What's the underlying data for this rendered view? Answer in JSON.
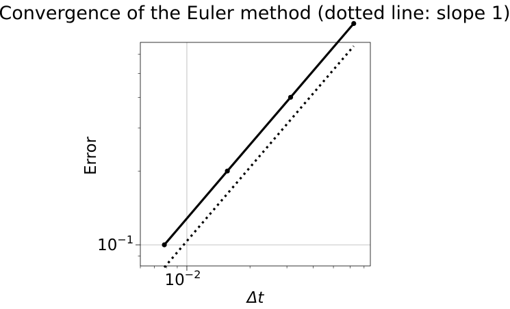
{
  "chart_data": {
    "type": "line",
    "title": "Convergence of the Euler method (dotted line: slope 1)",
    "xlabel": "Δt",
    "ylabel": "Error",
    "x_scale": "log",
    "y_scale": "log",
    "xlim": [
      0.006,
      0.075
    ],
    "ylim": [
      0.082,
      0.67
    ],
    "grid": true,
    "x_ticks": [
      {
        "value": 0.01,
        "base": "10",
        "exp": "−2"
      }
    ],
    "y_ticks": [
      {
        "value": 0.1,
        "base": "10",
        "exp": "−1"
      }
    ],
    "series": [
      {
        "style": "solid-markers",
        "color": "#000000",
        "x": [
          0.00781,
          0.0156,
          0.03125,
          0.0625
        ],
        "y": [
          0.1,
          0.2,
          0.4,
          0.8
        ]
      },
      {
        "style": "dotted",
        "color": "#000000",
        "x": [
          0.00781,
          0.0625
        ],
        "y": [
          0.0809,
          0.647
        ]
      }
    ]
  }
}
